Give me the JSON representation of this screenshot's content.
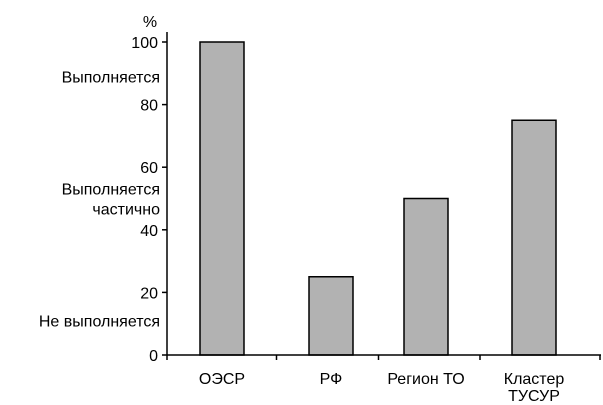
{
  "chart_data": {
    "type": "bar",
    "title": "",
    "xlabel": "",
    "ylabel": "%",
    "ylim": [
      0,
      100
    ],
    "yticks": [
      0,
      20,
      40,
      60,
      80,
      100
    ],
    "grid": false,
    "categories": [
      [
        "ОЭСР"
      ],
      [
        "РФ"
      ],
      [
        "Регион ТО"
      ],
      [
        "Кластер",
        "ТУСУР"
      ]
    ],
    "values": [
      100,
      25,
      50,
      75
    ],
    "bar_color": "#b2b2b2",
    "bar_edge_color": "#000000",
    "band_labels": [
      {
        "lines": [
          "Выполняется"
        ],
        "y": 89
      },
      {
        "lines": [
          "Выполняется",
          "частично"
        ],
        "y": 50
      },
      {
        "lines": [
          "Не выполняется"
        ],
        "y": 11
      }
    ]
  }
}
